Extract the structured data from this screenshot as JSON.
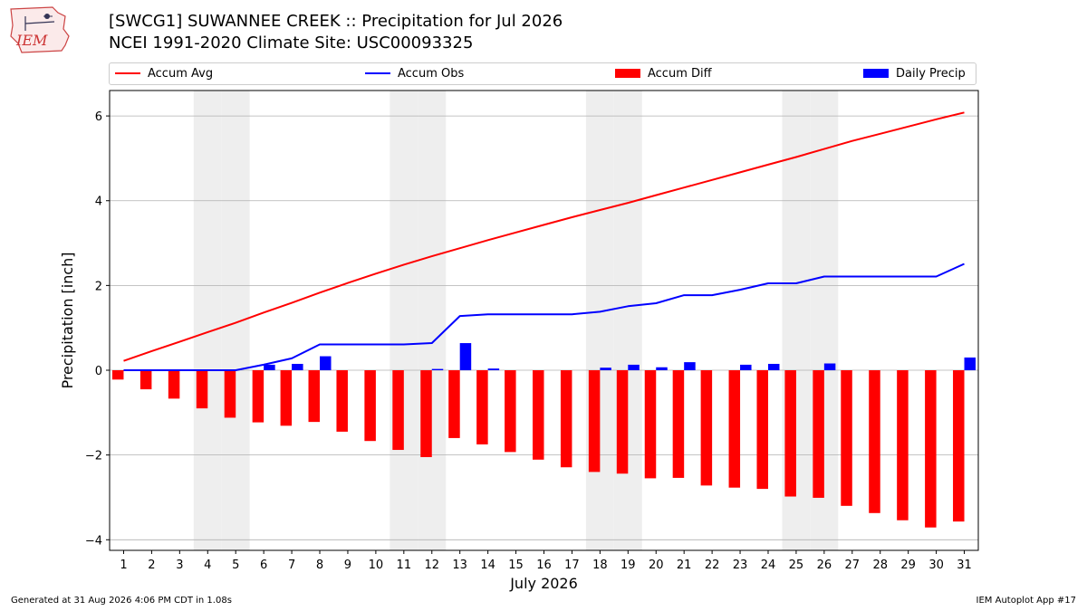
{
  "header": {
    "logo_text": "IEM",
    "title_line1": "[SWCG1] SUWANNEE CREEK :: Precipitation for Jul 2026",
    "title_line2": "NCEI 1991-2020 Climate Site: USC00093325"
  },
  "footer": {
    "generated": "Generated at 31 Aug 2026 4:06 PM CDT in 1.08s",
    "app": "IEM Autoplot App #17"
  },
  "colors": {
    "avg": "#ff0000",
    "obs": "#0000ff",
    "diff": "#ff0000",
    "daily": "#0000ff",
    "weekend_shade": "#eeeeee",
    "grid": "#b0b0b0"
  },
  "chart_data": {
    "type": "bar",
    "xlabel": "July 2026",
    "ylabel": "Precipitation [inch]",
    "ylim": [
      -4.25,
      6.6
    ],
    "yticks": [
      -4,
      -2,
      0,
      2,
      4,
      6
    ],
    "ytick_labels": [
      "−4",
      "−2",
      "0",
      "2",
      "4",
      "6"
    ],
    "grid": "horizontal",
    "legend_position": "top",
    "legend": {
      "avg": "Accum Avg",
      "obs": "Accum Obs",
      "diff": "Accum Diff",
      "daily": "Daily Precip"
    },
    "weekend_days": [
      4,
      5,
      11,
      12,
      18,
      19,
      25,
      26
    ],
    "x": [
      1,
      2,
      3,
      4,
      5,
      6,
      7,
      8,
      9,
      10,
      11,
      12,
      13,
      14,
      15,
      16,
      17,
      18,
      19,
      20,
      21,
      22,
      23,
      24,
      25,
      26,
      27,
      28,
      29,
      30,
      31
    ],
    "series": [
      {
        "name": "Accum Avg",
        "kind": "line",
        "values": [
          0.22,
          0.45,
          0.67,
          0.9,
          1.12,
          1.36,
          1.59,
          1.83,
          2.06,
          2.28,
          2.49,
          2.69,
          2.88,
          3.07,
          3.25,
          3.43,
          3.61,
          3.78,
          3.95,
          4.13,
          4.31,
          4.49,
          4.67,
          4.85,
          5.03,
          5.22,
          5.41,
          5.58,
          5.75,
          5.92,
          6.08
        ]
      },
      {
        "name": "Accum Obs",
        "kind": "line",
        "values": [
          0.0,
          0.0,
          0.0,
          0.0,
          0.0,
          0.13,
          0.28,
          0.61,
          0.61,
          0.61,
          0.61,
          0.64,
          1.28,
          1.32,
          1.32,
          1.32,
          1.32,
          1.38,
          1.51,
          1.58,
          1.77,
          1.77,
          1.9,
          2.05,
          2.05,
          2.21,
          2.21,
          2.21,
          2.21,
          2.21,
          2.51
        ]
      },
      {
        "name": "Accum Diff",
        "kind": "bar",
        "values": [
          -0.22,
          -0.45,
          -0.67,
          -0.9,
          -1.12,
          -1.23,
          -1.31,
          -1.22,
          -1.45,
          -1.67,
          -1.88,
          -2.05,
          -1.6,
          -1.75,
          -1.93,
          -2.11,
          -2.29,
          -2.4,
          -2.44,
          -2.55,
          -2.54,
          -2.72,
          -2.77,
          -2.8,
          -2.98,
          -3.01,
          -3.2,
          -3.37,
          -3.54,
          -3.71,
          -3.57
        ]
      },
      {
        "name": "Daily Precip",
        "kind": "bar",
        "values": [
          0,
          0,
          0,
          0,
          0,
          0.13,
          0.15,
          0.33,
          0,
          0,
          0,
          0.03,
          0.64,
          0.04,
          0,
          0,
          0,
          0.06,
          0.13,
          0.07,
          0.19,
          0,
          0.13,
          0.15,
          0,
          0.16,
          0,
          0,
          0,
          0,
          0.3
        ]
      }
    ]
  }
}
